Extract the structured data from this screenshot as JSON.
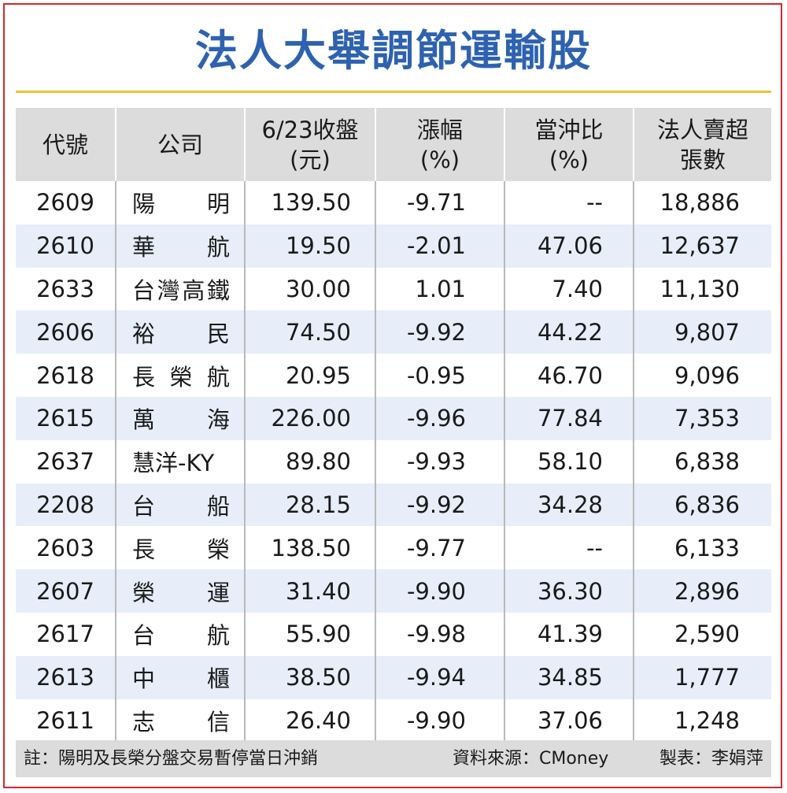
{
  "title": "法人大舉調節運輸股",
  "table": {
    "headers": {
      "code": "代號",
      "company": "公司",
      "close_l1": "6/23收盤",
      "close_l2": "(元)",
      "change_l1": "漲幅",
      "change_l2": "(%)",
      "daytrade_l1": "當沖比",
      "daytrade_l2": "(%)",
      "sell_l1": "法人賣超",
      "sell_l2": "張數"
    },
    "rows": [
      {
        "code": "2609",
        "name": [
          "陽",
          "明"
        ],
        "close": "139.50",
        "change": "-9.71",
        "daytrade": "--",
        "sell": "18,886"
      },
      {
        "code": "2610",
        "name": [
          "華",
          "航"
        ],
        "close": "19.50",
        "change": "-2.01",
        "daytrade": "47.06",
        "sell": "12,637"
      },
      {
        "code": "2633",
        "name": [
          "台",
          "灣",
          "高",
          "鐵"
        ],
        "close": "30.00",
        "change": "1.01",
        "daytrade": "7.40",
        "sell": "11,130"
      },
      {
        "code": "2606",
        "name": [
          "裕",
          "民"
        ],
        "close": "74.50",
        "change": "-9.92",
        "daytrade": "44.22",
        "sell": "9,807"
      },
      {
        "code": "2618",
        "name": [
          "長",
          "榮",
          "航"
        ],
        "close": "20.95",
        "change": "-0.95",
        "daytrade": "46.70",
        "sell": "9,096"
      },
      {
        "code": "2615",
        "name": [
          "萬",
          "海"
        ],
        "close": "226.00",
        "change": "-9.96",
        "daytrade": "77.84",
        "sell": "7,353"
      },
      {
        "code": "2637",
        "name": [
          "慧洋-KY"
        ],
        "close": "89.80",
        "change": "-9.93",
        "daytrade": "58.10",
        "sell": "6,838"
      },
      {
        "code": "2208",
        "name": [
          "台",
          "船"
        ],
        "close": "28.15",
        "change": "-9.92",
        "daytrade": "34.28",
        "sell": "6,836"
      },
      {
        "code": "2603",
        "name": [
          "長",
          "榮"
        ],
        "close": "138.50",
        "change": "-9.77",
        "daytrade": "--",
        "sell": "6,133"
      },
      {
        "code": "2607",
        "name": [
          "榮",
          "運"
        ],
        "close": "31.40",
        "change": "-9.90",
        "daytrade": "36.30",
        "sell": "2,896"
      },
      {
        "code": "2617",
        "name": [
          "台",
          "航"
        ],
        "close": "55.90",
        "change": "-9.98",
        "daytrade": "41.39",
        "sell": "2,590"
      },
      {
        "code": "2613",
        "name": [
          "中",
          "櫃"
        ],
        "close": "38.50",
        "change": "-9.94",
        "daytrade": "34.85",
        "sell": "1,777"
      },
      {
        "code": "2611",
        "name": [
          "志",
          "信"
        ],
        "close": "26.40",
        "change": "-9.90",
        "daytrade": "37.06",
        "sell": "1,248"
      }
    ]
  },
  "footer": {
    "note": "註：陽明及長榮分盤交易暫停當日沖銷",
    "source": "資料來源：CMoney",
    "maker": "製表：李娟萍"
  },
  "colors": {
    "title": "#2e62b0",
    "title_rule": "#e8c632",
    "frame": "#d9262c",
    "header_bg": "#dcdcdc",
    "alt_row_bg": "#e7eefa"
  }
}
